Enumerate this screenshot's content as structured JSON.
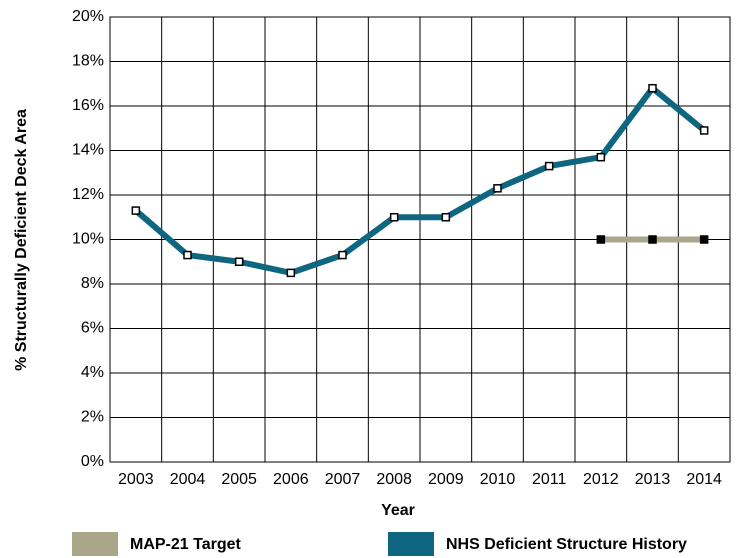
{
  "chart_data": {
    "type": "line",
    "x_label": "Year",
    "y_label": "% Structurally Deficient Deck Area",
    "categories": [
      "2003",
      "2004",
      "2005",
      "2006",
      "2007",
      "2008",
      "2009",
      "2010",
      "2011",
      "2012",
      "2013",
      "2014"
    ],
    "series": [
      {
        "name": "MAP-21 Target",
        "color": "#a9a68a",
        "marker_color": "#000000",
        "values": [
          null,
          null,
          null,
          null,
          null,
          null,
          null,
          null,
          null,
          10,
          10,
          10
        ]
      },
      {
        "name": "NHS Deficient Structure History",
        "color": "#0f6680",
        "marker_color": "#ffffff",
        "values": [
          11.3,
          9.3,
          9.0,
          8.5,
          9.3,
          11.0,
          11.0,
          12.3,
          13.3,
          13.7,
          16.8,
          14.9
        ]
      }
    ],
    "ylim": [
      0,
      20
    ],
    "yticks": [
      {
        "value": 0,
        "label": "0%"
      },
      {
        "value": 2,
        "label": "2%"
      },
      {
        "value": 4,
        "label": "4%"
      },
      {
        "value": 6,
        "label": "6%"
      },
      {
        "value": 8,
        "label": "8%"
      },
      {
        "value": 10,
        "label": "10%"
      },
      {
        "value": 12,
        "label": "12%"
      },
      {
        "value": 14,
        "label": "14%"
      },
      {
        "value": 16,
        "label": "16%"
      },
      {
        "value": 18,
        "label": "18%"
      },
      {
        "value": 20,
        "label": "20%"
      }
    ],
    "grid": true,
    "legend": "bottom"
  }
}
